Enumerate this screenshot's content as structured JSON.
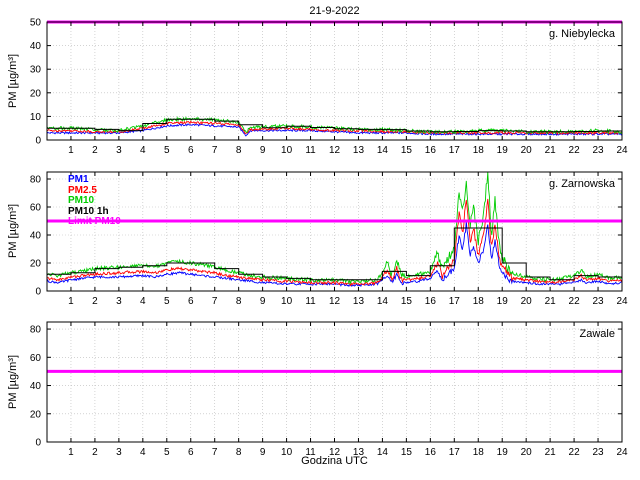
{
  "title": "21-9-2022",
  "xlabel": "Godzina UTC",
  "ylabel": "PM [µg/m³]",
  "colors": {
    "pm1": "#0000ff",
    "pm2_5": "#ff0000",
    "pm10": "#00cc00",
    "pm10_1h": "#000000",
    "limit": "#ff00ff"
  },
  "legend": [
    {
      "label": "PM1",
      "color": "#0000ff"
    },
    {
      "label": "PM2.5",
      "color": "#ff0000"
    },
    {
      "label": "PM10",
      "color": "#00cc00"
    },
    {
      "label": "PM10 1h",
      "color": "#000000"
    },
    {
      "label": "Limit PM10",
      "color": "#ff00ff"
    }
  ],
  "chart_data": [
    {
      "type": "line",
      "station": "g. Niebylecka",
      "ylim": [
        0,
        50
      ],
      "yticks": [
        0,
        10,
        20,
        30,
        40,
        50
      ],
      "xticks": [
        1,
        2,
        3,
        4,
        5,
        6,
        7,
        8,
        9,
        10,
        11,
        12,
        13,
        14,
        15,
        16,
        17,
        18,
        19,
        20,
        21,
        22,
        23,
        24
      ],
      "xlim": [
        0,
        24
      ],
      "limit": 50,
      "x": [
        0,
        1,
        2,
        3,
        4,
        5,
        6,
        7,
        8,
        8.3,
        8.5,
        9,
        10,
        11,
        12,
        13,
        14,
        15,
        16,
        17,
        18,
        19,
        20,
        21,
        22,
        23,
        24
      ],
      "series": [
        {
          "name": "PM1",
          "color": "#0000ff",
          "noise": 0.4,
          "values": [
            3,
            3,
            3,
            3,
            4,
            6,
            6.5,
            6,
            5.5,
            2,
            4,
            4,
            4,
            4,
            3.5,
            3,
            3,
            3,
            2.5,
            2.5,
            2.5,
            2.5,
            2.5,
            2.5,
            2.5,
            2.5,
            2.5
          ]
        },
        {
          "name": "PM2.5",
          "color": "#ff0000",
          "noise": 0.5,
          "values": [
            4,
            4,
            3.5,
            3.5,
            5,
            7,
            7.5,
            7,
            6.5,
            2.5,
            4.5,
            4.5,
            5,
            4.5,
            4,
            4,
            3.5,
            3.5,
            3,
            3,
            3,
            3,
            3,
            3,
            3,
            3,
            3
          ]
        },
        {
          "name": "PM10",
          "color": "#00cc00",
          "noise": 0.7,
          "values": [
            5,
            5,
            4.5,
            4,
            6,
            8.5,
            9,
            8.5,
            7.5,
            3,
            5.5,
            5.5,
            6,
            5.5,
            5,
            4.5,
            4.5,
            4,
            3.5,
            3.5,
            4,
            4,
            3.5,
            3.5,
            3.5,
            4,
            3.5
          ]
        }
      ],
      "pm10_1h": [
        5,
        5,
        4.5,
        4,
        7,
        8.8,
        8.8,
        8,
        6.5,
        5.2,
        5.8,
        5.3,
        4.8,
        4.5,
        4.4,
        3.8,
        3.5,
        3.6,
        4,
        3.8,
        3.5,
        3.5,
        3.6,
        3.8
      ],
      "noise_zones": []
    },
    {
      "type": "line",
      "station": "g. Zarnowska",
      "ylim": [
        0,
        85
      ],
      "yticks": [
        0,
        20,
        40,
        60,
        80
      ],
      "xticks": [
        1,
        2,
        3,
        4,
        5,
        6,
        7,
        8,
        9,
        10,
        11,
        12,
        13,
        14,
        15,
        16,
        17,
        18,
        19,
        20,
        21,
        22,
        23,
        24
      ],
      "xlim": [
        0,
        24
      ],
      "limit": 50,
      "x": [
        0,
        0.5,
        1,
        1.5,
        2,
        3,
        4,
        4.5,
        5,
        5.5,
        6,
        6.5,
        7,
        7.5,
        8,
        8.5,
        9,
        10,
        11,
        12,
        12.5,
        13,
        13.8,
        14.2,
        14.4,
        14.6,
        14.8,
        15,
        15.5,
        16,
        16.3,
        16.5,
        16.8,
        17,
        17.2,
        17.35,
        17.5,
        17.65,
        17.8,
        18,
        18.2,
        18.4,
        18.55,
        18.7,
        18.9,
        19,
        19.3,
        19.5,
        20,
        20.5,
        21,
        21.5,
        22,
        22.3,
        22.5,
        23,
        23.5,
        24
      ],
      "series": [
        {
          "name": "PM1",
          "color": "#0000ff",
          "noise": 0.8,
          "values": [
            7,
            6,
            8,
            9,
            10,
            10,
            11,
            10,
            12,
            13,
            12,
            11,
            10,
            9,
            8,
            7,
            6,
            5,
            5,
            5,
            4,
            4,
            5,
            11,
            7,
            12,
            6,
            6,
            7,
            9,
            15,
            8,
            13,
            16,
            40,
            30,
            48,
            25,
            33,
            20,
            28,
            48,
            22,
            35,
            16,
            13,
            8,
            7,
            6,
            5,
            5,
            5,
            6,
            8,
            6,
            7,
            5,
            6
          ]
        },
        {
          "name": "PM2.5",
          "color": "#ff0000",
          "noise": 1.0,
          "values": [
            9,
            8,
            10,
            11,
            12,
            13,
            14,
            13,
            15,
            16,
            15,
            14,
            13,
            11,
            10,
            9,
            8,
            7,
            6,
            6,
            5,
            5,
            6,
            15,
            9,
            16,
            8,
            8,
            9,
            11,
            20,
            11,
            18,
            22,
            55,
            42,
            65,
            35,
            45,
            26,
            38,
            65,
            30,
            48,
            22,
            18,
            11,
            9,
            8,
            7,
            6,
            7,
            8,
            11,
            8,
            9,
            7,
            8
          ]
        },
        {
          "name": "PM10",
          "color": "#00cc00",
          "noise": 1.4,
          "values": [
            12,
            11,
            13,
            14,
            16,
            17,
            18,
            17,
            20,
            21,
            20,
            19,
            17,
            15,
            13,
            11,
            10,
            9,
            8,
            8,
            7,
            7,
            8,
            20,
            12,
            22,
            10,
            10,
            12,
            14,
            28,
            15,
            25,
            30,
            70,
            55,
            80,
            45,
            60,
            35,
            50,
            85,
            40,
            65,
            30,
            25,
            15,
            12,
            10,
            9,
            8,
            9,
            11,
            15,
            10,
            12,
            9,
            10
          ]
        }
      ],
      "pm10_1h": [
        12,
        13,
        16,
        17,
        18,
        20,
        20,
        16,
        12,
        10,
        9,
        8,
        8,
        8,
        14,
        11,
        18,
        45,
        45,
        20,
        10,
        8,
        11,
        10
      ],
      "noise_zones": [
        [
          14.1,
          14.9,
          2.0
        ],
        [
          16.2,
          19.4,
          2.5
        ]
      ]
    },
    {
      "type": "line",
      "station": "Zawale",
      "ylim": [
        0,
        85
      ],
      "yticks": [
        0,
        20,
        40,
        60,
        80
      ],
      "xticks": [
        1,
        2,
        3,
        4,
        5,
        6,
        7,
        8,
        9,
        10,
        11,
        12,
        13,
        14,
        15,
        16,
        17,
        18,
        19,
        20,
        21,
        22,
        23,
        24
      ],
      "xlim": [
        0,
        24
      ],
      "limit": 50,
      "x": [],
      "series": [],
      "pm10_1h": null,
      "noise_zones": []
    }
  ]
}
